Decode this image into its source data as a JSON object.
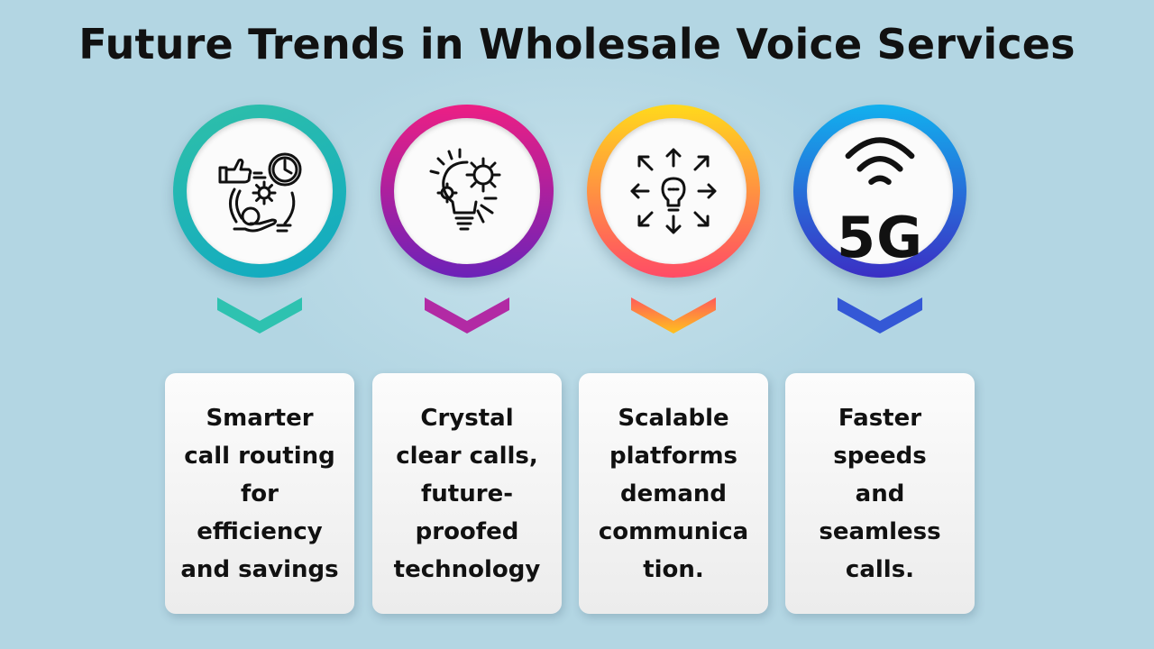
{
  "title": "Future Trends in Wholesale Voice Services",
  "items": [
    {
      "icon": "call-routing-icon",
      "ring_colors": [
        "#2bb8a5",
        "#12b3c0"
      ],
      "chevron_color": "#2ec2b0",
      "text": "Smarter\ncall routing\nfor\nefficiency\nand savings"
    },
    {
      "icon": "innovation-bulb-gears-icon",
      "ring_colors": [
        "#e0198a",
        "#6a1fb3"
      ],
      "chevron_color": "#b22aa4",
      "text": "Crystal\nclear calls,\nfuture-\nproofed\ntechnology"
    },
    {
      "icon": "scalable-idea-arrows-icon",
      "ring_colors": [
        "#ffd21a",
        "#ff4e62"
      ],
      "chevron_color": "#ff8a3a",
      "text": "Scalable\nplatforms\ndemand\ncommunica\ntion."
    },
    {
      "icon": "5g-signal-icon",
      "ring_colors": [
        "#19a9ee",
        "#3a34c7"
      ],
      "chevron_color": "#3458d6",
      "text": "Faster\nspeeds\nand\nseamless\ncalls.",
      "badge": "5G"
    }
  ]
}
